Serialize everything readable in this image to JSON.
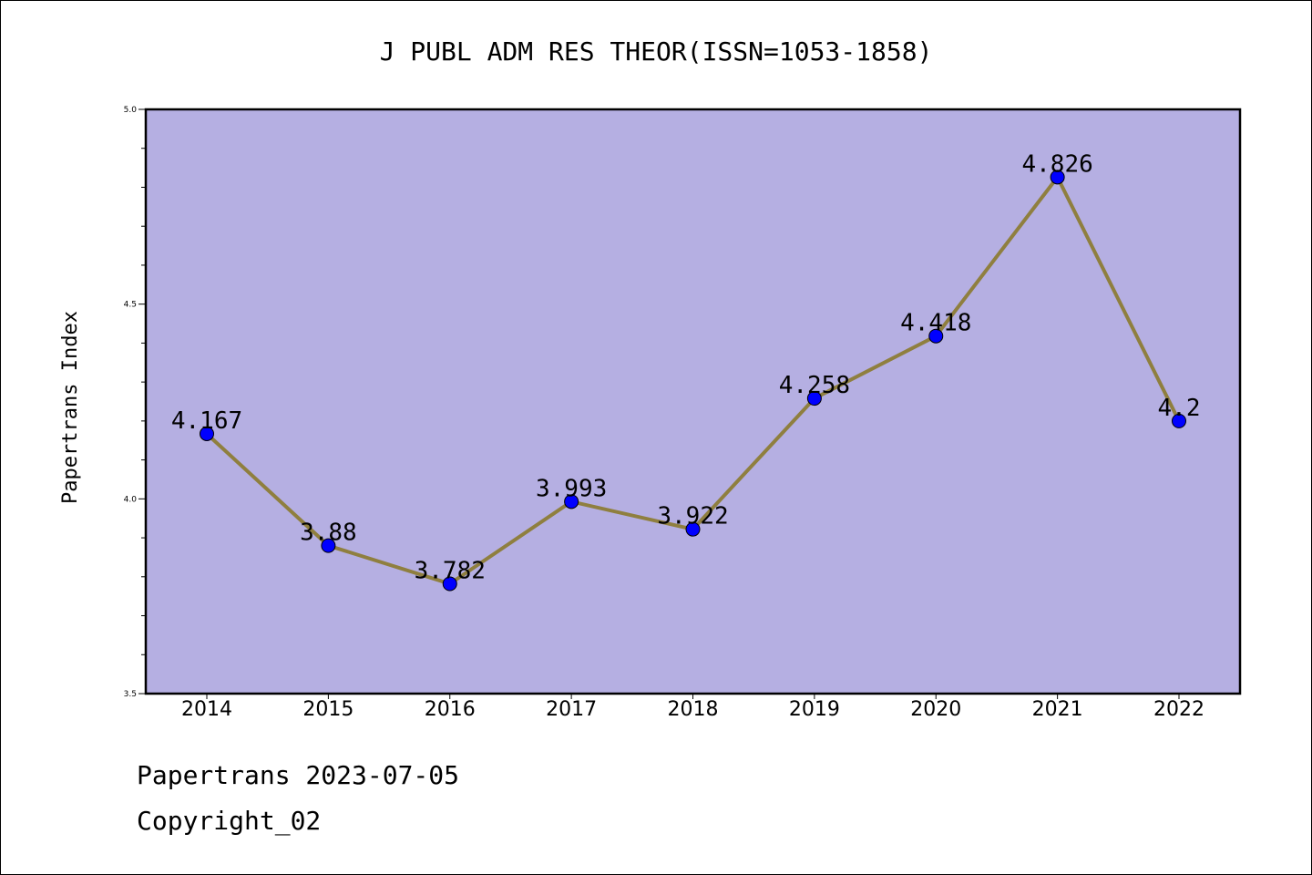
{
  "chart_data": {
    "type": "line",
    "title": "J PUBL ADM RES THEOR(ISSN=1053-1858)",
    "xlabel": "",
    "ylabel": "Papertrans Index",
    "categories": [
      "2014",
      "2015",
      "2016",
      "2017",
      "2018",
      "2019",
      "2020",
      "2021",
      "2022"
    ],
    "series": [
      {
        "values": [
          4.167,
          3.88,
          3.782,
          3.993,
          3.922,
          4.258,
          4.418,
          4.826,
          4.2
        ],
        "labels": [
          "4.167",
          "3.88",
          "3.782",
          "3.993",
          "3.922",
          "4.258",
          "4.418",
          "4.826",
          "4.2"
        ]
      }
    ],
    "ylim": [
      3.5,
      5.0
    ],
    "yticks": [
      "3.5",
      "4.0",
      "4.5",
      "5.0"
    ],
    "grid": false,
    "colors": {
      "plot_background": "#b5afe2",
      "line": "#8f7f3f",
      "marker": "#0000ff"
    }
  },
  "footer": {
    "line1": "Papertrans 2023-07-05",
    "line2": "Copyright_02"
  }
}
